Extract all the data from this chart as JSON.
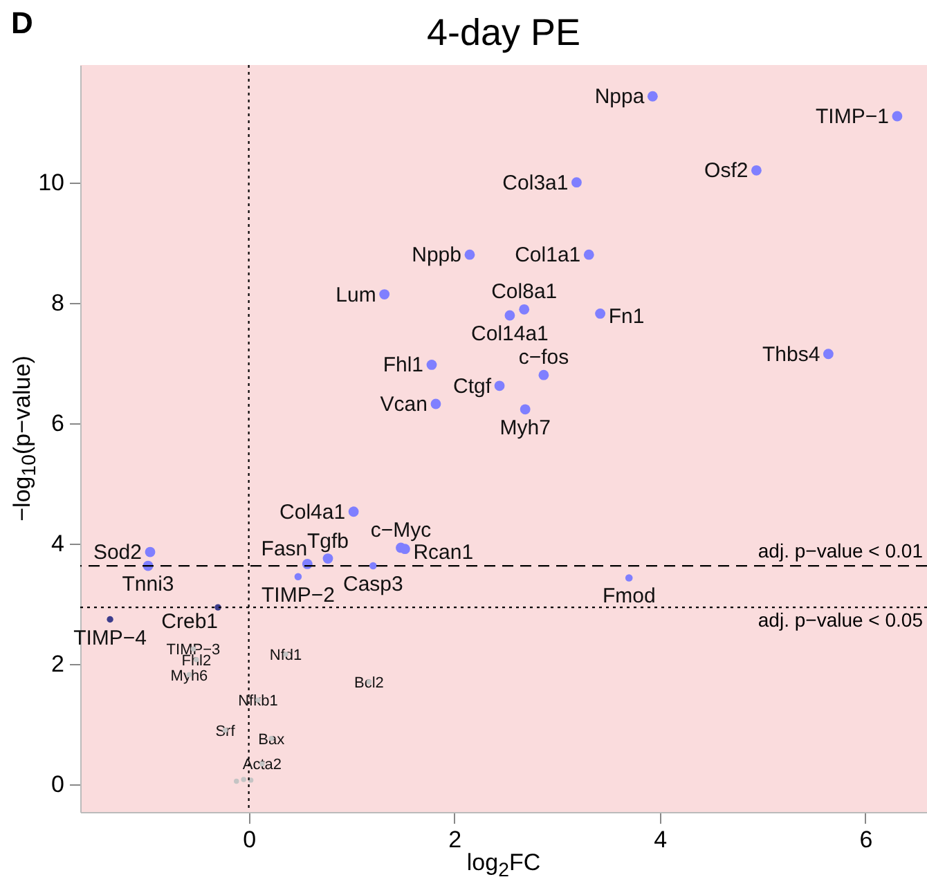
{
  "chart_data": {
    "type": "scatter",
    "title": "4-day PE",
    "xlabel": "log$_{2}$FC",
    "ylabel": "−log$_{10}$(p−value)",
    "xlim": [
      -1.64,
      6.6
    ],
    "ylim": [
      -0.46,
      11.95
    ],
    "xticks": [
      0,
      2,
      4,
      6
    ],
    "yticks": [
      0,
      2,
      4,
      6,
      8,
      10
    ],
    "grid": false,
    "marker": "circle",
    "series": [
      {
        "color": "#7f7fff",
        "x": [
          3.93,
          6.31,
          4.94,
          3.19,
          2.15,
          3.31,
          1.32,
          2.68,
          2.54,
          3.42,
          5.64,
          1.78,
          2.87,
          2.44,
          1.82,
          2.69,
          1.02,
          -0.96,
          -0.98,
          0.57,
          0.77,
          1.48,
          1.52
        ],
        "values": [
          11.43,
          11.1,
          10.2,
          10.0,
          8.8,
          8.8,
          8.14,
          7.89,
          7.79,
          7.82,
          7.15,
          6.97,
          6.8,
          6.62,
          6.32,
          6.23,
          4.53,
          3.86,
          3.63,
          3.66,
          3.75,
          3.93,
          3.91
        ]
      },
      {
        "color": "#7f7fff",
        "x": [
          1.21,
          0.48,
          3.7
        ],
        "values": [
          3.63,
          3.45,
          3.43
        ]
      },
      {
        "color": "#3c3c8c",
        "x": [
          -0.3,
          -1.35
        ],
        "values": [
          2.94,
          2.74
        ]
      },
      {
        "color": "#c4c4c4",
        "x": [
          -0.54,
          -0.51,
          -0.58,
          0.36,
          0.09,
          1.17,
          -0.23,
          0.22,
          0.13,
          -0.12,
          -0.05,
          0.02
        ],
        "values": [
          2.25,
          2.07,
          1.82,
          2.16,
          1.4,
          1.7,
          0.9,
          0.76,
          0.34,
          0.05,
          0.08,
          0.07
        ]
      }
    ],
    "ref_lines": [
      {
        "axis": "y",
        "value": 3.63,
        "label": "adj. p−value < 0.01",
        "line_style": "dashed"
      },
      {
        "axis": "y",
        "value": 2.94,
        "label": "adj. p−value < 0.05",
        "line_style": "dotted"
      },
      {
        "axis": "x",
        "value": 0,
        "line_style": "dotted"
      }
    ],
    "annotations": [
      "D",
      {
        "text": "Nppa",
        "x": 3.93,
        "y": 11.43
      },
      {
        "text": "TIMP−1",
        "x": 6.31,
        "y": 11.1
      },
      {
        "text": "Osf2",
        "x": 4.94,
        "y": 10.2
      },
      {
        "text": "Col3a1",
        "x": 3.19,
        "y": 10.0
      },
      {
        "text": "Nppb",
        "x": 2.15,
        "y": 8.8
      },
      {
        "text": "Col1a1",
        "x": 3.31,
        "y": 8.8
      },
      {
        "text": "Lum",
        "x": 1.32,
        "y": 8.14
      },
      {
        "text": "Col8a1",
        "x": 2.68,
        "y": 7.89
      },
      {
        "text": "Col14a1",
        "x": 2.54,
        "y": 7.79
      },
      {
        "text": "Fn1",
        "x": 3.42,
        "y": 7.82
      },
      {
        "text": "Thbs4",
        "x": 5.64,
        "y": 7.15
      },
      {
        "text": "Fhl1",
        "x": 1.78,
        "y": 6.97
      },
      {
        "text": "c−fos",
        "x": 2.87,
        "y": 6.8
      },
      {
        "text": "Ctgf",
        "x": 2.44,
        "y": 6.62
      },
      {
        "text": "Vcan",
        "x": 1.82,
        "y": 6.32
      },
      {
        "text": "Myh7",
        "x": 2.69,
        "y": 6.23
      },
      {
        "text": "Col4a1",
        "x": 1.02,
        "y": 4.53
      },
      {
        "text": "Sod2",
        "x": -0.96,
        "y": 3.86
      },
      {
        "text": "Tnni3",
        "x": -0.98,
        "y": 3.63
      },
      {
        "text": "Fasn",
        "x": 0.57,
        "y": 3.66
      },
      {
        "text": "Tgfb",
        "x": 0.77,
        "y": 3.75
      },
      {
        "text": "c−Myc",
        "x": 1.48,
        "y": 3.93
      },
      {
        "text": "Rcan1",
        "x": 1.52,
        "y": 3.91
      },
      {
        "text": "Casp3",
        "x": 1.21,
        "y": 3.63
      },
      {
        "text": "TIMP−2",
        "x": 0.48,
        "y": 3.45
      },
      {
        "text": "Fmod",
        "x": 3.7,
        "y": 3.43
      },
      {
        "text": "Creb1",
        "x": -0.3,
        "y": 2.94
      },
      {
        "text": "TIMP−4",
        "x": -1.35,
        "y": 2.74
      },
      {
        "text": "TIMP−3",
        "x": -0.54,
        "y": 2.25
      },
      {
        "text": "Fhl2",
        "x": -0.51,
        "y": 2.07
      },
      {
        "text": "Myh6",
        "x": -0.58,
        "y": 1.82
      },
      {
        "text": "Nfd1",
        "x": 0.36,
        "y": 2.16
      },
      {
        "text": "Nfkb1",
        "x": 0.09,
        "y": 1.4
      },
      {
        "text": "Bcl2",
        "x": 1.17,
        "y": 1.7
      },
      {
        "text": "Srf",
        "x": -0.23,
        "y": 0.9
      },
      {
        "text": "Bax",
        "x": 0.22,
        "y": 0.76
      },
      {
        "text": "Acta2",
        "x": 0.13,
        "y": 0.34
      }
    ]
  }
}
